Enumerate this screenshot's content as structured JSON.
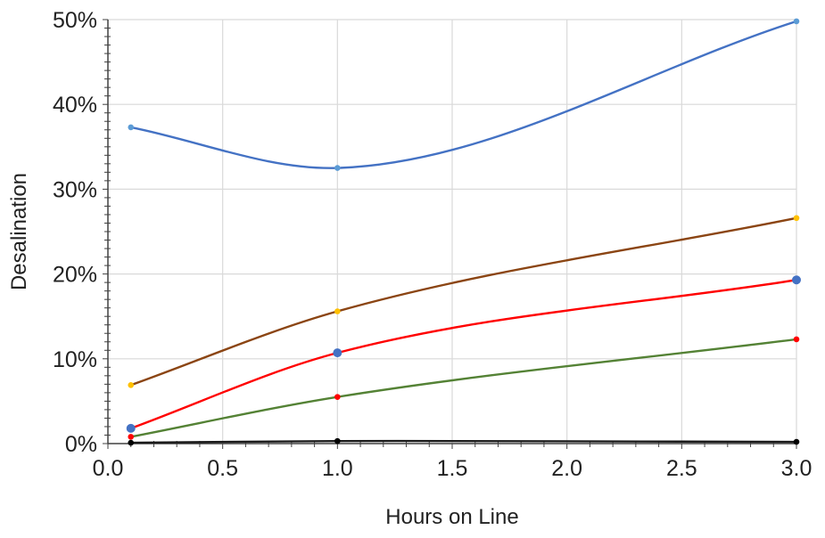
{
  "chart_data": {
    "type": "line",
    "xlabel": "Hours on Line",
    "ylabel": "Desalination",
    "xlim": [
      0.0,
      3.0
    ],
    "ylim": [
      0,
      50
    ],
    "x_ticks": [
      "0.0",
      "0.5",
      "1.0",
      "1.5",
      "2.0",
      "2.5",
      "3.0"
    ],
    "y_ticks": [
      "0%",
      "10%",
      "20%",
      "30%",
      "40%",
      "50%"
    ],
    "x_tick_values": [
      0.0,
      0.5,
      1.0,
      1.5,
      2.0,
      2.5,
      3.0
    ],
    "y_tick_values": [
      0,
      10,
      20,
      30,
      40,
      50
    ],
    "grid": true,
    "legend": "none",
    "series": [
      {
        "x": [
          0.1,
          1.0,
          3.0
        ],
        "values": [
          37.3,
          32.5,
          49.8
        ],
        "line_color": "#4472c4",
        "marker_color": "#5b9bd5",
        "marker": "small"
      },
      {
        "x": [
          0.1,
          1.0,
          3.0
        ],
        "values": [
          6.9,
          15.6,
          26.6
        ],
        "line_color": "#8b4513",
        "marker_color": "#ffc000",
        "marker": "small"
      },
      {
        "x": [
          0.1,
          1.0,
          3.0
        ],
        "values": [
          1.8,
          10.7,
          19.3
        ],
        "line_color": "#ff0000",
        "marker_color": "#4472c4",
        "marker": "large"
      },
      {
        "x": [
          0.1,
          1.0,
          3.0
        ],
        "values": [
          0.8,
          5.5,
          12.3
        ],
        "line_color": "#548235",
        "marker_color": "#ff0000",
        "marker": "small"
      },
      {
        "x": [
          0.1,
          1.0,
          3.0
        ],
        "values": [
          0.1,
          0.3,
          0.2
        ],
        "line_color": "#1a1a1a",
        "marker_color": "#000000",
        "marker": "small"
      }
    ]
  }
}
